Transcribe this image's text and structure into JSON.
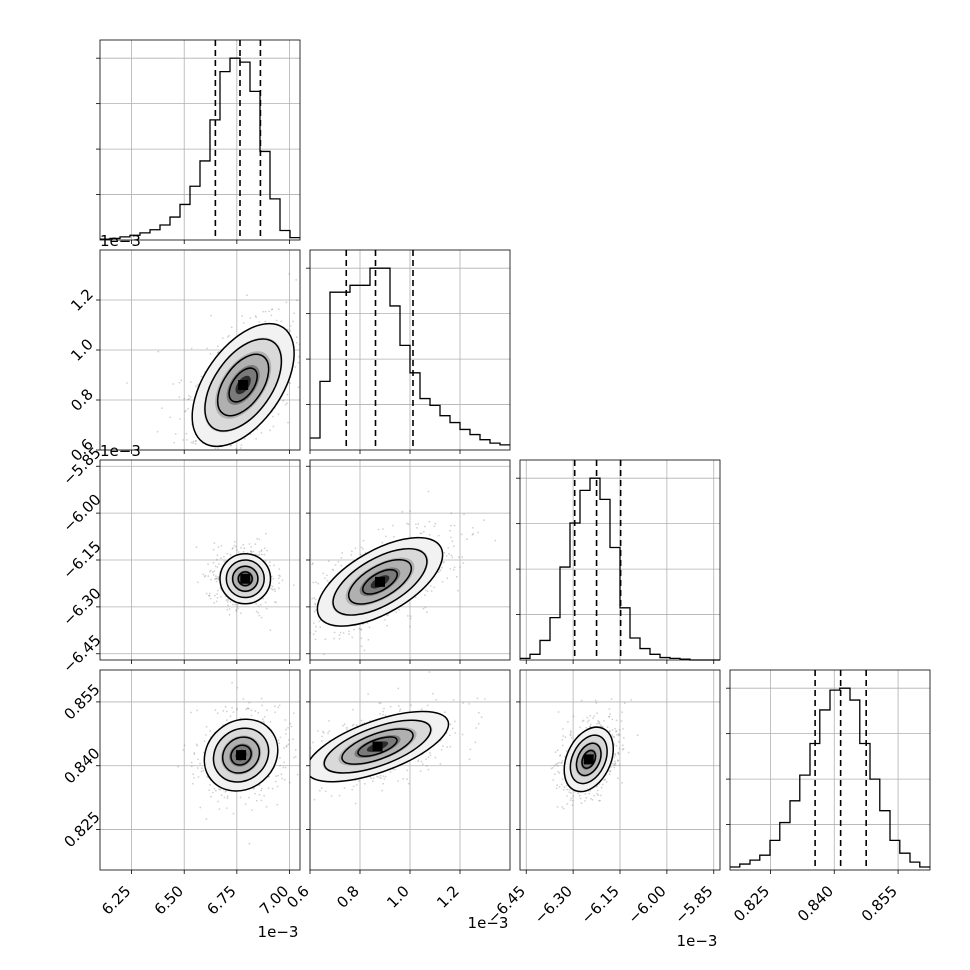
{
  "chart_data": {
    "type": "corner",
    "grid": true,
    "parameters": [
      {
        "index": 0,
        "range": [
          6.1,
          7.05
        ],
        "ticks": [
          6.25,
          6.5,
          6.75,
          7.0
        ],
        "tick_labels": [
          "6.25",
          "6.50",
          "6.75",
          "7.00"
        ],
        "offset_label": "1e−3",
        "quantiles": [
          6.648,
          6.765,
          6.862
        ],
        "hist_edges": [
          6.1,
          6.1475,
          6.195,
          6.2425,
          6.29,
          6.3375,
          6.385,
          6.4325,
          6.48,
          6.5275,
          6.575,
          6.6225,
          6.67,
          6.7175,
          6.765,
          6.8125,
          6.86,
          6.9075,
          6.955,
          7.0025,
          7.05
        ],
        "hist_counts": [
          1,
          2,
          4,
          6,
          9,
          13,
          19,
          29,
          45,
          68,
          100,
          152,
          213,
          230,
          225,
          188,
          112,
          52,
          12,
          3
        ]
      },
      {
        "index": 1,
        "range": [
          0.6,
          1.4
        ],
        "ticks": [
          0.6,
          0.8,
          1.0,
          1.2
        ],
        "tick_labels": [
          "0.6",
          "0.8",
          "1.0",
          "1.2"
        ],
        "offset_label": "1e−3",
        "quantiles": [
          0.745,
          0.862,
          1.012
        ],
        "hist_edges": [
          0.6,
          0.64,
          0.68,
          0.72,
          0.76,
          0.8,
          0.84,
          0.88,
          0.92,
          0.96,
          1.0,
          1.04,
          1.08,
          1.12,
          1.16,
          1.2,
          1.24,
          1.28,
          1.32,
          1.36,
          1.4
        ],
        "hist_counts": [
          7,
          40,
          92,
          92,
          96,
          96,
          106,
          106,
          84,
          61,
          45,
          30,
          26,
          20,
          16,
          12,
          9,
          6,
          4,
          3
        ]
      },
      {
        "index": 2,
        "range": [
          -6.47,
          -5.83
        ],
        "ticks": [
          -6.45,
          -6.3,
          -6.15,
          -6.0,
          -5.85
        ],
        "tick_labels": [
          "−6.45",
          "−6.30",
          "−6.15",
          "−6.00",
          "−5.85"
        ],
        "offset_label": "1e−3",
        "quantiles": [
          -6.295,
          -6.225,
          -6.148
        ],
        "hist_edges": [
          -6.47,
          -6.438,
          -6.406,
          -6.374,
          -6.342,
          -6.31,
          -6.278,
          -6.246,
          -6.214,
          -6.182,
          -6.15,
          -6.118,
          -6.086,
          -6.054,
          -6.022,
          -5.99,
          -5.958,
          -5.926,
          -5.894,
          -5.862,
          -5.83
        ],
        "hist_counts": [
          2,
          7,
          24,
          52,
          114,
          168,
          208,
          223,
          197,
          138,
          64,
          27,
          14,
          7,
          3,
          2,
          1,
          0,
          0,
          0
        ]
      },
      {
        "index": 3,
        "range": [
          0.8155,
          0.8625
        ],
        "ticks": [
          0.825,
          0.84,
          0.855
        ],
        "tick_labels": [
          "0.825",
          "0.840",
          "0.855"
        ],
        "offset_label": "",
        "quantiles": [
          0.8355,
          0.8415,
          0.8475
        ],
        "hist_edges": [
          0.8155,
          0.8178,
          0.8202,
          0.8225,
          0.8249,
          0.8272,
          0.8296,
          0.8319,
          0.8343,
          0.8366,
          0.839,
          0.8413,
          0.8437,
          0.846,
          0.8484,
          0.8507,
          0.8531,
          0.8554,
          0.8578,
          0.8601,
          0.8625
        ],
        "hist_counts": [
          3,
          6,
          10,
          15,
          30,
          48,
          70,
          96,
          128,
          162,
          182,
          184,
          172,
          128,
          92,
          60,
          30,
          17,
          8,
          3
        ]
      }
    ],
    "pairs": [
      {
        "row": 1,
        "col": 0,
        "x_center": 6.78,
        "y_center": 0.86,
        "angle_deg": -55,
        "spread": [
          0.14,
          0.28
        ]
      },
      {
        "row": 2,
        "col": 0,
        "x_center": 6.79,
        "y_center": -6.21,
        "angle_deg": 0,
        "spread": [
          0.12,
          0.08
        ]
      },
      {
        "row": 2,
        "col": 1,
        "x_center": 0.88,
        "y_center": -6.22,
        "angle_deg": -30,
        "spread": [
          0.28,
          0.1
        ]
      },
      {
        "row": 3,
        "col": 0,
        "x_center": 6.77,
        "y_center": 0.8425,
        "angle_deg": 50,
        "spread": [
          0.16,
          0.007
        ]
      },
      {
        "row": 3,
        "col": 1,
        "x_center": 0.87,
        "y_center": 0.8445,
        "angle_deg": -20,
        "spread": [
          0.3,
          0.006
        ]
      },
      {
        "row": 3,
        "col": 2,
        "x_center": -6.25,
        "y_center": 0.8415,
        "angle_deg": 25,
        "spread": [
          0.07,
          0.008
        ]
      }
    ]
  }
}
